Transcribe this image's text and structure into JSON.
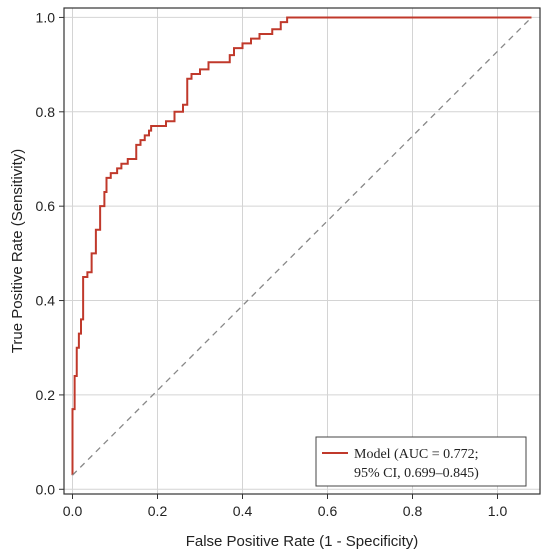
{
  "chart_data": {
    "type": "line",
    "title": "",
    "xlabel": "False Positive Rate (1 - Specificity)",
    "ylabel": "True Positive Rate (Sensitivity)",
    "xlim": [
      -0.02,
      1.1
    ],
    "ylim": [
      -0.01,
      1.02
    ],
    "xticks": [
      0.0,
      0.2,
      0.4,
      0.6,
      0.8,
      1.0
    ],
    "yticks": [
      0.0,
      0.2,
      0.4,
      0.6,
      0.8,
      1.0
    ],
    "xtick_labels": [
      "0.0",
      "0.2",
      "0.4",
      "0.6",
      "0.8",
      "1.0"
    ],
    "ytick_labels": [
      "0.0",
      "0.2",
      "0.4",
      "0.6",
      "0.8",
      "1.0"
    ],
    "grid": true,
    "legend_position": "bottom-right",
    "legend_lines": [
      "Model (AUC = 0.772;",
      "95% CI, 0.699–0.845)"
    ],
    "series": [
      {
        "name": "Model (AUC = 0.772; 95% CI, 0.699–0.845)",
        "color": "#c0392b",
        "step": true,
        "x": [
          0.0,
          0.0,
          0.005,
          0.005,
          0.01,
          0.01,
          0.015,
          0.015,
          0.02,
          0.02,
          0.025,
          0.025,
          0.035,
          0.035,
          0.045,
          0.045,
          0.055,
          0.055,
          0.065,
          0.065,
          0.075,
          0.075,
          0.08,
          0.08,
          0.09,
          0.09,
          0.105,
          0.105,
          0.115,
          0.115,
          0.13,
          0.13,
          0.15,
          0.15,
          0.16,
          0.16,
          0.17,
          0.17,
          0.18,
          0.18,
          0.185,
          0.185,
          0.22,
          0.22,
          0.24,
          0.24,
          0.26,
          0.26,
          0.27,
          0.27,
          0.28,
          0.28,
          0.3,
          0.3,
          0.32,
          0.32,
          0.37,
          0.37,
          0.38,
          0.38,
          0.4,
          0.4,
          0.42,
          0.42,
          0.44,
          0.44,
          0.47,
          0.47,
          0.49,
          0.49,
          0.505,
          0.505,
          0.545,
          0.545,
          0.555,
          0.555,
          0.56,
          0.56,
          0.58,
          0.58,
          0.6,
          0.6,
          0.64,
          0.64,
          0.65,
          0.65,
          0.67,
          0.67,
          0.7,
          0.7,
          0.72,
          0.72,
          0.74,
          0.74,
          0.76,
          0.76,
          0.78,
          0.78,
          0.79,
          0.79,
          0.8,
          0.8,
          0.81,
          0.81,
          0.82,
          0.82,
          0.83,
          0.83,
          0.86,
          0.86,
          0.88,
          0.88,
          0.95,
          0.95,
          1.02,
          1.02,
          1.08
        ],
        "y": [
          0.03,
          0.17,
          0.17,
          0.24,
          0.24,
          0.3,
          0.3,
          0.33,
          0.33,
          0.36,
          0.36,
          0.45,
          0.45,
          0.46,
          0.46,
          0.5,
          0.5,
          0.55,
          0.55,
          0.6,
          0.6,
          0.63,
          0.63,
          0.66,
          0.66,
          0.67,
          0.67,
          0.68,
          0.68,
          0.69,
          0.69,
          0.7,
          0.7,
          0.73,
          0.73,
          0.74,
          0.74,
          0.75,
          0.75,
          0.76,
          0.76,
          0.77,
          0.77,
          0.78,
          0.78,
          0.8,
          0.8,
          0.815,
          0.815,
          0.87,
          0.87,
          0.88,
          0.88,
          0.89,
          0.89,
          0.905,
          0.905,
          0.92,
          0.92,
          0.935,
          0.935,
          0.945,
          0.945,
          0.955,
          0.955,
          0.965,
          0.965,
          0.975,
          0.975,
          0.99,
          0.99,
          1.0,
          1.0,
          1.0,
          1.0,
          1.0,
          1.0,
          1.0,
          1.0,
          1.0,
          1.0,
          1.0,
          1.0,
          1.0,
          1.0,
          1.0,
          1.0,
          1.0,
          1.0,
          1.0,
          1.0,
          1.0,
          1.0,
          1.0,
          1.0,
          1.0,
          1.0,
          1.0,
          1.0,
          1.0,
          1.0,
          1.0,
          1.0,
          1.0,
          1.0,
          1.0,
          1.0,
          1.0,
          1.0,
          1.0,
          1.0,
          1.0,
          1.0,
          1.0,
          1.0,
          1.0,
          1.0
        ]
      },
      {
        "name": "",
        "color": "#888888",
        "dashed": true,
        "x": [
          0.0,
          1.08
        ],
        "y": [
          0.03,
          1.0
        ]
      }
    ]
  }
}
